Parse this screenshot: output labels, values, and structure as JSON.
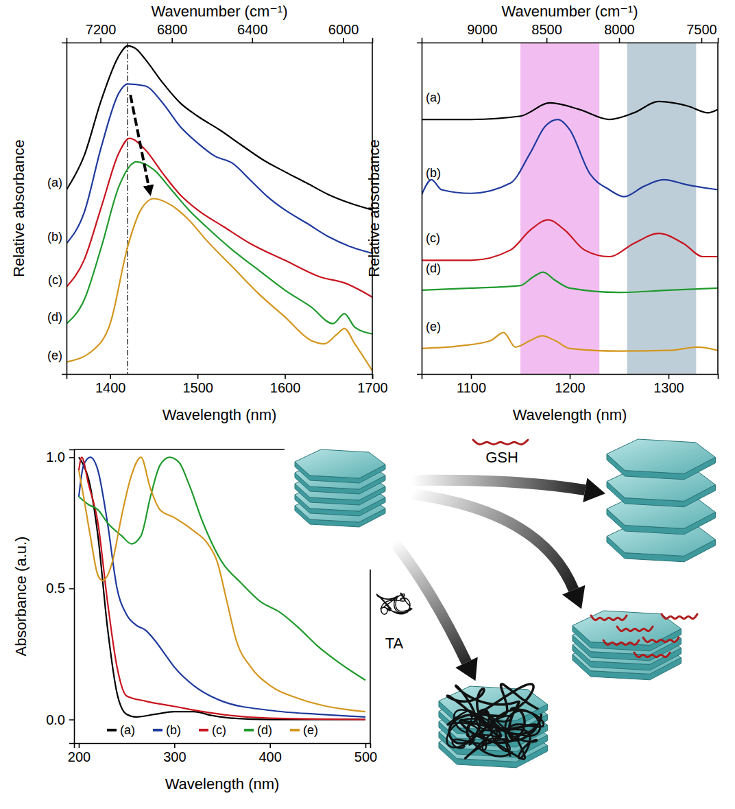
{
  "chart_data": [
    {
      "type": "line",
      "xlabel": "Wavelength (nm)",
      "ylabel": "Relative absorbance",
      "x2label": "Wavenumber (cm⁻¹)",
      "xlim": [
        1350,
        1700
      ],
      "xticks": [
        1400,
        1500,
        1600,
        1700
      ],
      "x2ticks": [
        7200,
        6800,
        6400,
        6000
      ],
      "ylim": [
        0,
        10
      ],
      "tick_labels": "x",
      "reference_x": 1420,
      "series": [
        {
          "name": "(a)",
          "color": "#000000",
          "x": [
            1350,
            1370,
            1390,
            1410,
            1420,
            1430,
            1440,
            1460,
            1480,
            1500,
            1525,
            1550,
            1575,
            1600,
            1625,
            1650,
            1675,
            1700
          ],
          "values": [
            5.56,
            6.57,
            8.28,
            9.6,
            9.9,
            9.8,
            9.5,
            8.79,
            8.18,
            7.78,
            7.37,
            6.91,
            6.46,
            6.1,
            5.76,
            5.41,
            5.15,
            4.95
          ]
        },
        {
          "name": "(b)",
          "color": "#1f3a9e",
          "x": [
            1350,
            1370,
            1390,
            1410,
            1420,
            1440,
            1460,
            1480,
            1500,
            1520,
            1540,
            1560,
            1580,
            1600,
            1625,
            1650,
            1675,
            1700
          ],
          "values": [
            3.94,
            4.85,
            6.87,
            8.48,
            8.75,
            8.69,
            8.18,
            7.47,
            6.97,
            6.57,
            6.36,
            5.86,
            5.35,
            4.95,
            4.55,
            4.14,
            3.84,
            3.64
          ]
        },
        {
          "name": "(c)",
          "color": "#c8141e",
          "x": [
            1350,
            1370,
            1390,
            1410,
            1422,
            1440,
            1460,
            1480,
            1500,
            1530,
            1560,
            1600,
            1640,
            1670,
            1700
          ],
          "values": [
            2.63,
            3.43,
            5.05,
            6.67,
            7.11,
            6.77,
            6.06,
            5.41,
            4.95,
            4.44,
            3.94,
            3.43,
            2.93,
            2.73,
            2.32
          ]
        },
        {
          "name": "(d)",
          "color": "#1e9a2c",
          "x": [
            1350,
            1370,
            1390,
            1410,
            1430,
            1450,
            1470,
            1490,
            1510,
            1540,
            1570,
            1600,
            1630,
            1655,
            1668,
            1680,
            1700
          ],
          "values": [
            1.52,
            2.22,
            3.84,
            5.66,
            6.4,
            6.16,
            5.56,
            4.95,
            4.44,
            3.74,
            3.13,
            2.53,
            2.02,
            1.52,
            1.82,
            1.41,
            1.21
          ]
        },
        {
          "name": "(e)",
          "color": "#d4961e",
          "x": [
            1350,
            1380,
            1400,
            1420,
            1435,
            1450,
            1470,
            1490,
            1510,
            1540,
            1570,
            1600,
            1630,
            1645,
            1660,
            1668,
            1680,
            1700
          ],
          "values": [
            0.36,
            0.71,
            1.52,
            3.84,
            4.95,
            5.29,
            5.09,
            4.65,
            4.04,
            3.23,
            2.42,
            1.72,
            1.01,
            0.91,
            1.21,
            1.37,
            0.91,
            0.1
          ]
        }
      ]
    },
    {
      "type": "line",
      "xlabel": "Wavelength (nm)",
      "ylabel": "Relative absorbance",
      "x2label": "Wavenumber (cm⁻¹)",
      "xlim": [
        1050,
        1350
      ],
      "xticks": [
        1100,
        1200,
        1300
      ],
      "x2ticks": [
        9000,
        8500,
        8000,
        7500
      ],
      "ylim": [
        0,
        10
      ],
      "tick_labels": "x",
      "bands": [
        {
          "range": [
            1150,
            1230
          ],
          "color": "#f0b3ee"
        },
        {
          "range": [
            1258,
            1328
          ],
          "color": "#b3c6d1"
        }
      ],
      "series": [
        {
          "name": "(a)",
          "color": "#000000",
          "x": [
            1050,
            1100,
            1150,
            1180,
            1210,
            1240,
            1265,
            1290,
            1320,
            1340,
            1350
          ],
          "values": [
            7.68,
            7.68,
            7.78,
            8.18,
            7.98,
            7.68,
            7.88,
            8.22,
            8.08,
            7.88,
            7.98
          ]
        },
        {
          "name": "(b)",
          "color": "#1f3a9e",
          "x": [
            1050,
            1060,
            1070,
            1100,
            1140,
            1160,
            1175,
            1188,
            1200,
            1220,
            1240,
            1255,
            1275,
            1295,
            1320,
            1350
          ],
          "values": [
            5.41,
            5.86,
            5.56,
            5.45,
            5.76,
            6.67,
            7.47,
            7.68,
            7.37,
            6.06,
            5.56,
            5.35,
            5.66,
            5.86,
            5.7,
            5.56
          ]
        },
        {
          "name": "(c)",
          "color": "#c8141e",
          "x": [
            1050,
            1100,
            1140,
            1160,
            1178,
            1195,
            1215,
            1240,
            1265,
            1290,
            1315,
            1335,
            1350
          ],
          "values": [
            3.43,
            3.43,
            3.74,
            4.34,
            4.65,
            4.34,
            3.74,
            3.54,
            3.94,
            4.24,
            3.94,
            3.54,
            3.54
          ]
        },
        {
          "name": "(d)",
          "color": "#1e9a2c",
          "x": [
            1050,
            1100,
            1150,
            1163,
            1173,
            1185,
            1200,
            1250,
            1300,
            1350
          ],
          "values": [
            2.53,
            2.59,
            2.67,
            2.93,
            3.07,
            2.83,
            2.59,
            2.46,
            2.53,
            2.59
          ]
        },
        {
          "name": "(e)",
          "color": "#d4961e",
          "x": [
            1050,
            1090,
            1120,
            1133,
            1145,
            1160,
            1172,
            1185,
            1200,
            1250,
            1300,
            1330,
            1350
          ],
          "values": [
            0.77,
            0.85,
            1.01,
            1.25,
            0.81,
            1.01,
            1.15,
            1.01,
            0.77,
            0.69,
            0.71,
            0.81,
            0.71
          ]
        }
      ]
    },
    {
      "type": "line",
      "xlabel": "Wavelength (nm)",
      "ylabel": "Absorbance (a.u.)",
      "xlim": [
        195,
        505
      ],
      "xticks": [
        200,
        300,
        400,
        500
      ],
      "ylim": [
        -0.09,
        1.03
      ],
      "yticks": [
        {
          "value": 0,
          "label": "0.0"
        },
        {
          "value": 0.5,
          "label": "0.5"
        },
        {
          "value": 1,
          "label": "1.0"
        }
      ],
      "legend": "bottom",
      "series": [
        {
          "name": "(a)",
          "color": "#000000",
          "x": [
            200,
            205,
            210,
            220,
            230,
            240,
            250,
            260,
            280,
            300,
            320,
            340,
            360,
            400,
            500
          ],
          "values": [
            1.0,
            0.97,
            0.92,
            0.7,
            0.35,
            0.1,
            0.02,
            0.01,
            0.02,
            0.03,
            0.03,
            0.015,
            0.005,
            0.0,
            0.0
          ]
        },
        {
          "name": "(b)",
          "color": "#1f3a9e",
          "x": [
            200,
            205,
            212,
            220,
            230,
            240,
            250,
            260,
            270,
            280,
            290,
            300,
            320,
            350,
            400,
            450,
            500
          ],
          "values": [
            0.85,
            0.97,
            1.0,
            0.95,
            0.75,
            0.5,
            0.4,
            0.36,
            0.34,
            0.3,
            0.25,
            0.2,
            0.13,
            0.07,
            0.035,
            0.02,
            0.01
          ]
        },
        {
          "name": "(c)",
          "color": "#c8141e",
          "x": [
            200,
            203,
            210,
            220,
            230,
            240,
            250,
            270,
            300,
            330,
            360,
            400,
            500
          ],
          "values": [
            0.95,
            1.0,
            0.9,
            0.75,
            0.45,
            0.2,
            0.09,
            0.07,
            0.05,
            0.03,
            0.015,
            0.005,
            0.0
          ]
        },
        {
          "name": "(d)",
          "color": "#1e9a2c",
          "x": [
            200,
            210,
            220,
            230,
            245,
            255,
            265,
            275,
            285,
            295,
            305,
            315,
            330,
            350,
            370,
            390,
            410,
            430,
            450,
            475,
            500
          ],
          "values": [
            0.85,
            0.82,
            0.8,
            0.75,
            0.7,
            0.67,
            0.7,
            0.85,
            0.97,
            1.0,
            0.98,
            0.9,
            0.75,
            0.6,
            0.52,
            0.45,
            0.41,
            0.35,
            0.28,
            0.21,
            0.15
          ]
        },
        {
          "name": "(e)",
          "color": "#d4961e",
          "x": [
            200,
            205,
            212,
            220,
            225,
            235,
            245,
            255,
            265,
            275,
            285,
            300,
            320,
            335,
            345,
            355,
            365,
            380,
            400,
            430,
            460,
            500
          ],
          "values": [
            0.95,
            0.85,
            0.7,
            0.55,
            0.53,
            0.6,
            0.78,
            0.93,
            1.0,
            0.88,
            0.8,
            0.77,
            0.72,
            0.67,
            0.6,
            0.45,
            0.3,
            0.2,
            0.13,
            0.08,
            0.05,
            0.03
          ]
        }
      ]
    }
  ],
  "diagram": {
    "reagents": [
      {
        "label": "GSH"
      },
      {
        "label": "TA"
      }
    ]
  }
}
